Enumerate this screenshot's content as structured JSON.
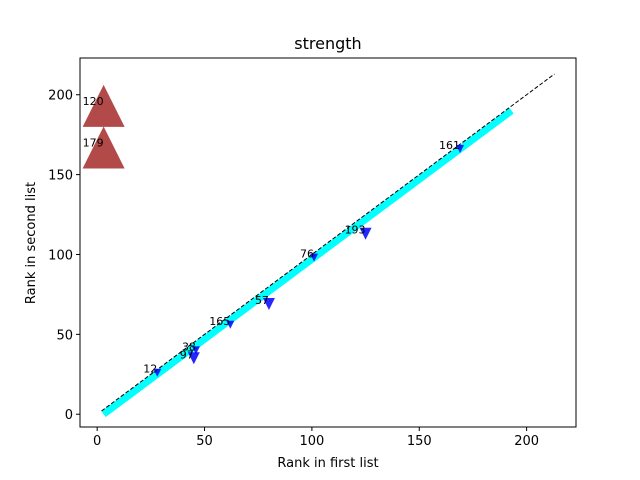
{
  "chart_data": {
    "type": "scatter",
    "title": "strength",
    "xlabel": "Rank in first list",
    "ylabel": "Rank in second list",
    "xlim": [
      -8,
      223
    ],
    "ylim": [
      -8,
      223
    ],
    "xticks": [
      0,
      50,
      100,
      150,
      200
    ],
    "yticks": [
      0,
      50,
      100,
      150,
      200
    ],
    "grid": false,
    "legend": "none",
    "diagonal": {
      "from": [
        2,
        2
      ],
      "to": [
        213,
        213
      ],
      "color": "#000000",
      "style": "dashed"
    },
    "band": {
      "from": [
        3,
        0
      ],
      "to": [
        193,
        190
      ],
      "color": "#00ffff"
    },
    "up_series": {
      "color": "#a52a2a",
      "points": [
        {
          "label": "120",
          "x": 3,
          "y": 193,
          "size": "large"
        },
        {
          "label": "179",
          "x": 3,
          "y": 167,
          "size": "large"
        }
      ]
    },
    "down_series": {
      "color": "#0000ff",
      "points": [
        {
          "label": "161",
          "x": 169,
          "y": 166,
          "size": "small"
        },
        {
          "label": "193",
          "x": 125,
          "y": 113,
          "size": "medium"
        },
        {
          "label": "76",
          "x": 101,
          "y": 98,
          "size": "small"
        },
        {
          "label": "57",
          "x": 80,
          "y": 69,
          "size": "medium"
        },
        {
          "label": "165",
          "x": 62,
          "y": 56,
          "size": "small"
        },
        {
          "label": "38",
          "x": 46,
          "y": 40,
          "size": "small"
        },
        {
          "label": "97",
          "x": 45,
          "y": 35,
          "size": "medium"
        },
        {
          "label": "12",
          "x": 28,
          "y": 26,
          "size": "small"
        }
      ]
    }
  }
}
